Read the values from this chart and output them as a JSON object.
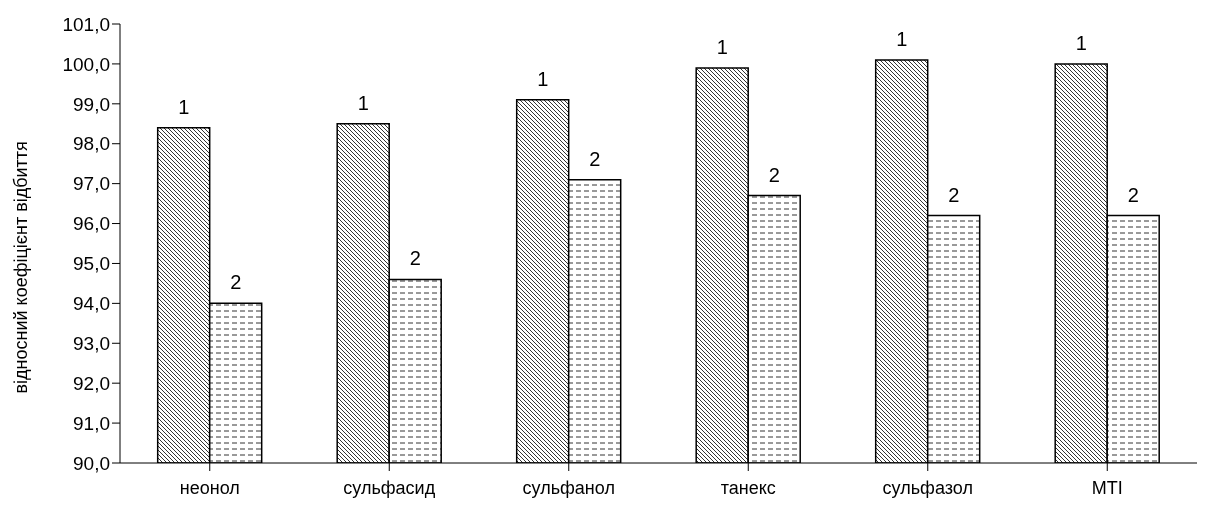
{
  "chart_data": {
    "type": "bar",
    "ylabel": "відносний коефіцієнт відбиття",
    "categories": [
      "неонол",
      "сульфасид",
      "сульфанол",
      "танекс",
      "сульфазол",
      "MTI"
    ],
    "series": [
      {
        "name": "1",
        "color": "#000000",
        "values": [
          98.4,
          98.5,
          99.1,
          99.9,
          100.1,
          100.0
        ]
      },
      {
        "name": "2",
        "color": "#000000",
        "values": [
          94.0,
          94.6,
          97.1,
          96.7,
          96.2,
          96.2
        ]
      }
    ],
    "ylim": [
      90,
      101
    ],
    "yticks": [
      {
        "value": 90,
        "label": "90,0"
      },
      {
        "value": 91,
        "label": "91,0"
      },
      {
        "value": 92,
        "label": "92,0"
      },
      {
        "value": 93,
        "label": "93,0"
      },
      {
        "value": 94,
        "label": "94,0"
      },
      {
        "value": 95,
        "label": "95,0"
      },
      {
        "value": 96,
        "label": "96,0"
      },
      {
        "value": 97,
        "label": "97,0"
      },
      {
        "value": 98,
        "label": "98,0"
      },
      {
        "value": 99,
        "label": "99,0"
      },
      {
        "value": 100,
        "label": "100,0"
      },
      {
        "value": 101,
        "label": "101,0"
      }
    ],
    "grid": false,
    "legend": false
  }
}
